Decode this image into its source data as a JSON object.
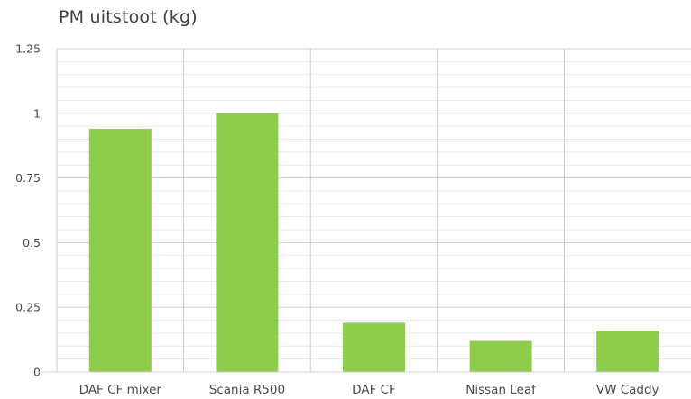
{
  "chart_data": {
    "type": "bar",
    "title": "PM uitstoot (kg)",
    "categories": [
      "DAF CF mixer",
      "Scania R500",
      "DAF CF",
      "Nissan Leaf",
      "VW Caddy"
    ],
    "values": [
      0.94,
      1.0,
      0.19,
      0.12,
      0.16
    ],
    "ylim": [
      0,
      1.25
    ],
    "yticks": [
      0,
      0.25,
      0.5,
      0.75,
      1,
      1.25
    ],
    "ytick_labels": [
      "0",
      "0.25",
      "0.5",
      "0.75",
      "1",
      "1.25"
    ],
    "grid": true,
    "legend": "none",
    "colors": {
      "bar": "#8dcd4b",
      "grid_major": "#d0d0d0",
      "grid_minor": "#e8e8e8",
      "separator": "#c8c8c8",
      "text": "#4a4a4a"
    }
  }
}
